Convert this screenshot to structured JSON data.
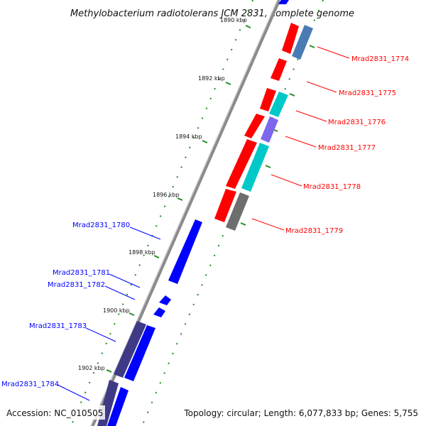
{
  "title": "Methylobacterium radiotolerans JCM 2831, complete genome",
  "accession": "Accession: NC_010505",
  "topology": "Topology: circular; Length: 6,077,833 bp; Genes: 5,755",
  "ticks": [
    "1890 kbp",
    "1892 kbp",
    "1894 kbp",
    "1896 kbp",
    "1898 kbp",
    "1900 kbp",
    "1902 kbp"
  ],
  "colors": {
    "red": "#ff0000",
    "blue": "#0000ff",
    "steel": "#4a7bb5",
    "cyan": "#00c8c8",
    "violet": "#7b68ee",
    "gray": "#6e6e6e",
    "indigo": "#3f3a86",
    "green": "#228b22",
    "backbone": "#8a8a8a"
  },
  "genes_right": [
    {
      "label": "Mrad2831_1774"
    },
    {
      "label": "Mrad2831_1775"
    },
    {
      "label": "Mrad2831_1776"
    },
    {
      "label": "Mrad2831_1777"
    },
    {
      "label": "Mrad2831_1778"
    },
    {
      "label": "Mrad2831_1779"
    }
  ],
  "genes_left": [
    {
      "label": "Mrad2831_1780"
    },
    {
      "label": "Mrad2831_1781"
    },
    {
      "label": "Mrad2831_1782"
    },
    {
      "label": "Mrad2831_1783"
    },
    {
      "label": "Mrad2831_1784"
    }
  ]
}
